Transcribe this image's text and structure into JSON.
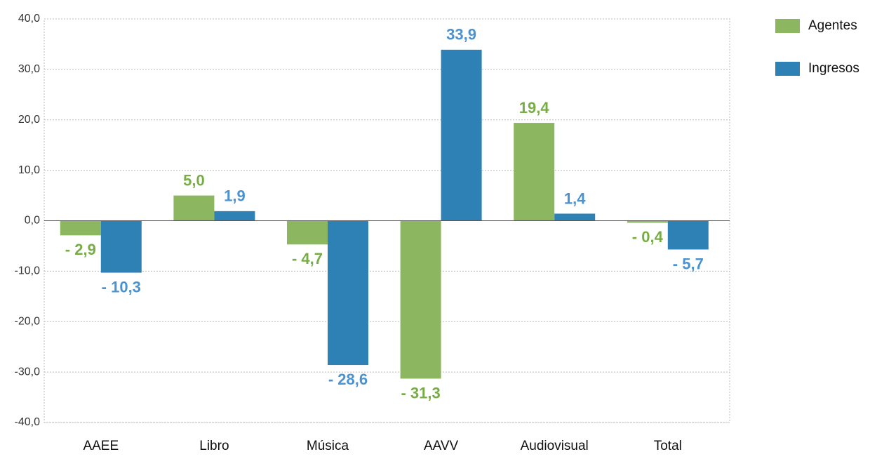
{
  "chart_data": {
    "type": "bar",
    "categories": [
      "AAEE",
      "Libro",
      "Música",
      "AAVV",
      "Audiovisual",
      "Total"
    ],
    "series": [
      {
        "name": "Agentes",
        "color": "#8db661",
        "label_color": "#77ad45",
        "values": [
          -2.9,
          5.0,
          -4.7,
          -31.3,
          19.4,
          -0.4
        ],
        "value_labels": [
          "- 2,9",
          "5,0",
          "- 4,7",
          "- 31,3",
          "19,4",
          "- 0,4"
        ]
      },
      {
        "name": "Ingresos",
        "color": "#2e81b4",
        "label_color": "#4a92d0",
        "values": [
          -10.3,
          1.9,
          -28.6,
          33.9,
          1.4,
          -5.7
        ],
        "value_labels": [
          "- 10,3",
          "1,9",
          "- 28,6",
          "33,9",
          "1,4",
          "- 5,7"
        ]
      }
    ],
    "ylim": [
      -40,
      40
    ],
    "yticks": [
      {
        "value": -40,
        "label": "-40,0"
      },
      {
        "value": -30,
        "label": "-30,0"
      },
      {
        "value": -20,
        "label": "-20,0"
      },
      {
        "value": -10,
        "label": "-10,0"
      },
      {
        "value": 0,
        "label": "0,0"
      },
      {
        "value": 10,
        "label": "10,0"
      },
      {
        "value": 20,
        "label": "20,0"
      },
      {
        "value": 30,
        "label": "30,0"
      },
      {
        "value": 40,
        "label": "40,0"
      }
    ],
    "grid": true,
    "legend": "top-right"
  }
}
